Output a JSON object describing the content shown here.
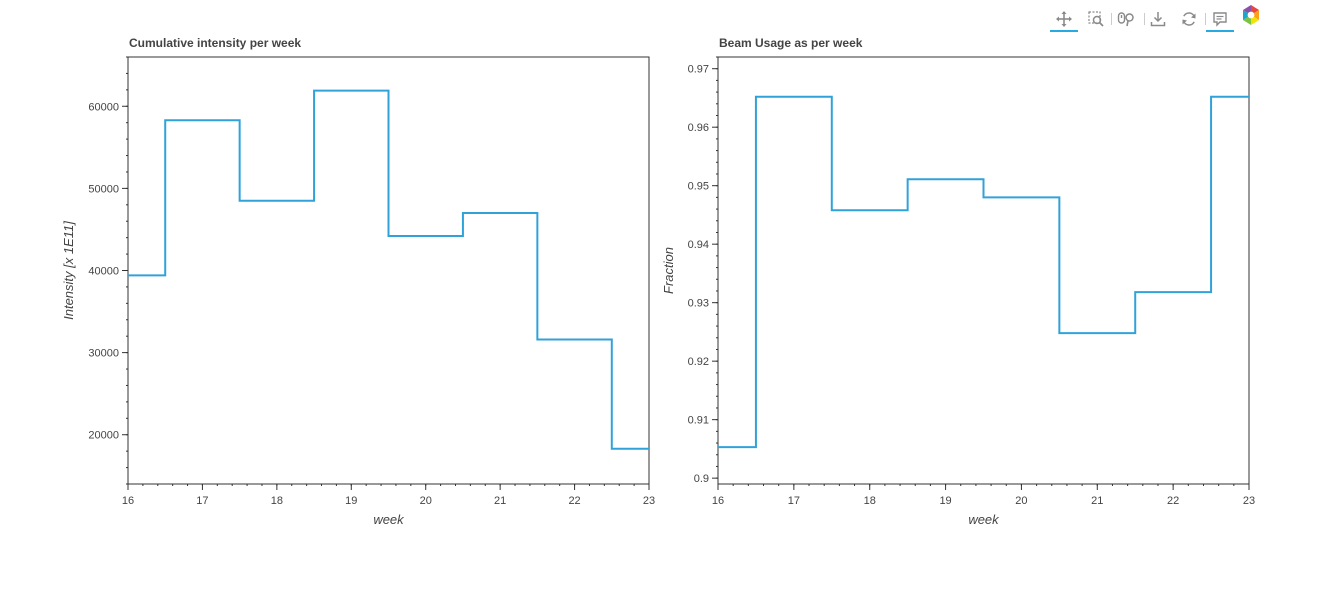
{
  "chart_data": [
    {
      "type": "line",
      "title": "Cumulative intensity per week",
      "xlabel": "week",
      "ylabel": "Intensity [x 1E11]",
      "xlim": [
        16,
        23
      ],
      "ylim": [
        14000,
        66000
      ],
      "xticks": [
        16,
        17,
        18,
        19,
        20,
        21,
        22,
        23
      ],
      "yticks": [
        20000,
        30000,
        40000,
        50000,
        60000
      ],
      "ytick_labels": [
        "20000",
        "30000",
        "40000",
        "50000",
        "60000"
      ],
      "step_mode": "center",
      "grid": false,
      "color": "#30a2da",
      "series": [
        {
          "x": [
            16,
            17,
            18,
            19,
            20,
            21,
            22,
            23
          ],
          "y": [
            39400,
            58300,
            48500,
            61900,
            44200,
            47000,
            31600,
            18300
          ]
        }
      ]
    },
    {
      "type": "line",
      "title": "Beam Usage as per week",
      "xlabel": "week",
      "ylabel": "Fraction",
      "xlim": [
        16,
        23
      ],
      "ylim": [
        0.899,
        0.972
      ],
      "xticks": [
        16,
        17,
        18,
        19,
        20,
        21,
        22,
        23
      ],
      "yticks": [
        0.9,
        0.91,
        0.92,
        0.93,
        0.94,
        0.95,
        0.96,
        0.97
      ],
      "ytick_labels": [
        "0.9",
        "0.91",
        "0.92",
        "0.93",
        "0.94",
        "0.95",
        "0.96",
        "0.97"
      ],
      "step_mode": "center",
      "grid": false,
      "color": "#30a2da",
      "series": [
        {
          "x": [
            16,
            17,
            18,
            19,
            20,
            21,
            22,
            23
          ],
          "y": [
            0.9053,
            0.9652,
            0.9458,
            0.9511,
            0.948,
            0.9248,
            0.9318,
            0.9652
          ]
        }
      ]
    }
  ],
  "toolbar": {
    "tools": [
      "pan-icon",
      "box-zoom-icon",
      "wheel-zoom-icon",
      "save-icon",
      "reset-icon",
      "hover-icon",
      "bokeh-logo-icon"
    ],
    "active": [
      "pan-icon",
      "hover-icon"
    ],
    "accent": "#26aae1"
  }
}
